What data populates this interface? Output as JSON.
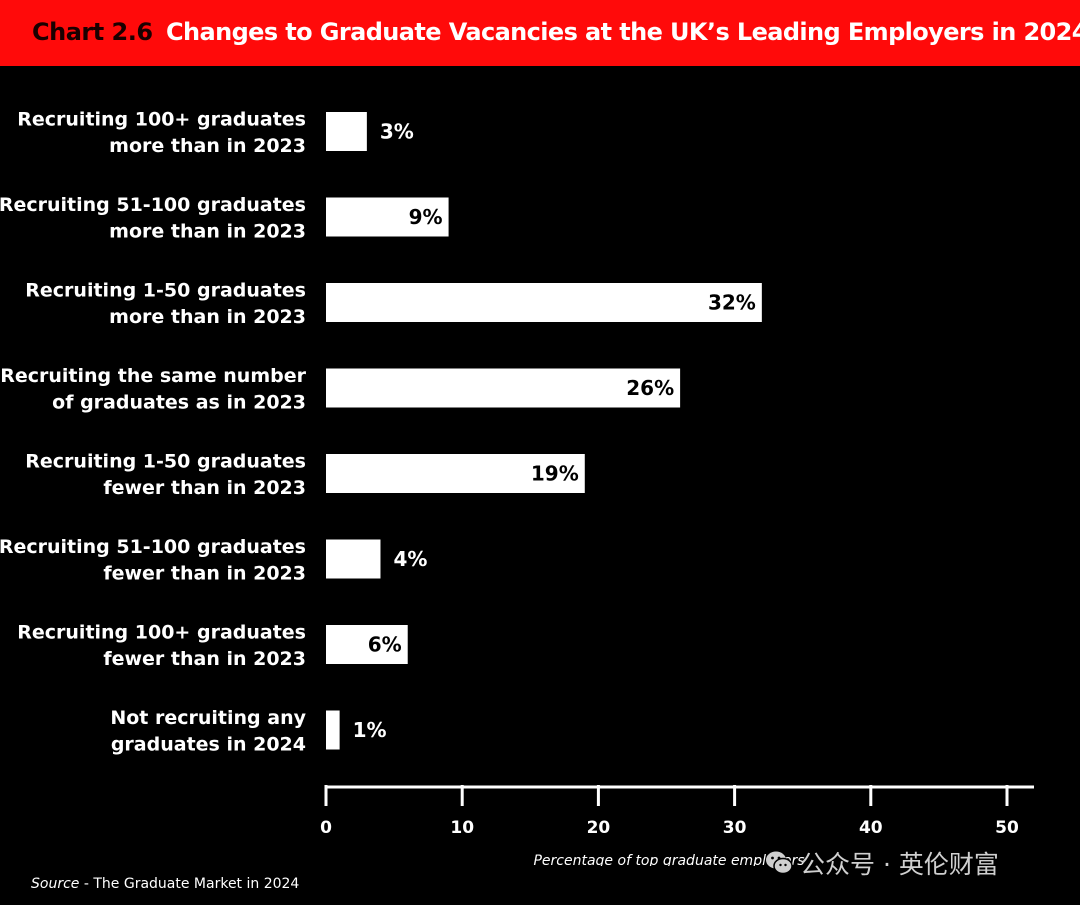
{
  "header": {
    "chart_number": "Chart 2.6",
    "title": "Changes to Graduate Vacancies at the UK’s Leading Employers in 2024"
  },
  "colors": {
    "banner": "#ff0a0a",
    "background": "#000000",
    "bar": "#ffffff"
  },
  "chart_data": {
    "type": "bar",
    "orientation": "horizontal",
    "title": "Changes to Graduate Vacancies at the UK’s Leading Employers in 2024",
    "categories": [
      [
        "Recruiting 100+ graduates",
        "more than in 2023"
      ],
      [
        "Recruiting 51-100 graduates",
        "more than in 2023"
      ],
      [
        "Recruiting 1-50 graduates",
        "more than in 2023"
      ],
      [
        "Recruiting the same number",
        "of graduates as in 2023"
      ],
      [
        "Recruiting 1-50 graduates",
        "fewer than in 2023"
      ],
      [
        "Recruiting 51-100 graduates",
        "fewer than in 2023"
      ],
      [
        "Recruiting 100+ graduates",
        "fewer than in 2023"
      ],
      [
        "Not recruiting any",
        "graduates in 2024"
      ]
    ],
    "values": [
      3,
      9,
      32,
      26,
      19,
      4,
      6,
      1
    ],
    "value_labels": [
      "3%",
      "9%",
      "32%",
      "26%",
      "19%",
      "4%",
      "6%",
      "1%"
    ],
    "xlabel": "Percentage of top graduate employers",
    "xlim": [
      0,
      52
    ],
    "xticks": [
      0,
      10,
      20,
      30,
      40,
      50
    ],
    "grid": false,
    "legend": "none"
  },
  "footer": {
    "source_word": "Source",
    "source_rest": " - The Graduate Market in 2024"
  },
  "watermark": {
    "text": "公众号 · 英伦财富",
    "icon": "wechat-icon"
  }
}
